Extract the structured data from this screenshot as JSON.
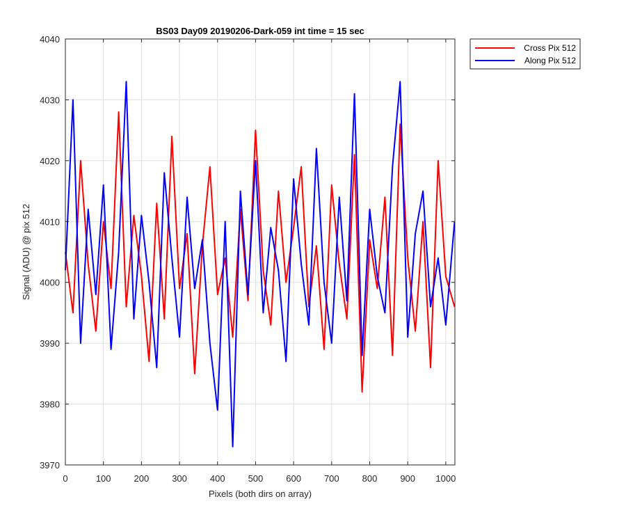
{
  "chart_data": {
    "type": "line",
    "title": "BS03 Day09 20190206-Dark-059 int time = 15 sec",
    "xlabel": "Pixels (both dirs on array)",
    "ylabel": "Signal (ADU) @ pix 512",
    "xlim": [
      0,
      1024
    ],
    "ylim": [
      3970,
      4040
    ],
    "xticks": [
      0,
      100,
      200,
      300,
      400,
      500,
      600,
      700,
      800,
      900,
      1000
    ],
    "yticks": [
      3970,
      3980,
      3990,
      4000,
      4010,
      4020,
      4030,
      4040
    ],
    "grid": true,
    "legend_position": "outside top-right",
    "series": [
      {
        "name": "Cross Pix 512",
        "color": "#ff0000",
        "x": [
          0,
          20,
          40,
          60,
          80,
          100,
          120,
          140,
          160,
          180,
          200,
          220,
          240,
          260,
          280,
          300,
          320,
          340,
          360,
          380,
          400,
          420,
          440,
          460,
          480,
          500,
          520,
          540,
          560,
          580,
          600,
          620,
          640,
          660,
          680,
          700,
          720,
          740,
          760,
          780,
          800,
          820,
          840,
          860,
          880,
          900,
          920,
          940,
          960,
          980,
          1000,
          1023
        ],
        "y": [
          4005,
          3995,
          4020,
          4003,
          3992,
          4010,
          3999,
          4028,
          3996,
          4011,
          4001,
          3987,
          4013,
          3994,
          4024,
          3999,
          4008,
          3985,
          4006,
          4019,
          3998,
          4004,
          3991,
          4012,
          3997,
          4025,
          4002,
          3993,
          4015,
          4000,
          4009,
          4019,
          3996,
          4006,
          3989,
          4016,
          4003,
          3994,
          4021,
          3982,
          4007,
          3999,
          4014,
          3988,
          4026,
          4004,
          3992,
          4010,
          3986,
          4020,
          4001,
          3996
        ]
      },
      {
        "name": "Along Pix 512",
        "color": "#0000ff",
        "x": [
          0,
          20,
          40,
          60,
          80,
          100,
          120,
          140,
          160,
          180,
          200,
          220,
          240,
          260,
          280,
          300,
          320,
          340,
          360,
          380,
          400,
          420,
          440,
          460,
          480,
          500,
          520,
          540,
          560,
          580,
          600,
          620,
          640,
          660,
          680,
          700,
          720,
          740,
          760,
          780,
          800,
          820,
          840,
          860,
          880,
          900,
          920,
          940,
          960,
          980,
          1000,
          1023
        ],
        "y": [
          4002,
          4030,
          3990,
          4012,
          3998,
          4016,
          3989,
          4005,
          4033,
          3994,
          4011,
          4000,
          3986,
          4018,
          4004,
          3991,
          4014,
          3999,
          4007,
          3990,
          3979,
          4010,
          3973,
          4015,
          3998,
          4020,
          3995,
          4009,
          4002,
          3987,
          4017,
          4003,
          3993,
          4022,
          4000,
          3990,
          4014,
          3997,
          4031,
          3988,
          4012,
          4001,
          3995,
          4019,
          4033,
          3991,
          4008,
          4015,
          3996,
          4004,
          3993,
          4010
        ]
      }
    ]
  }
}
